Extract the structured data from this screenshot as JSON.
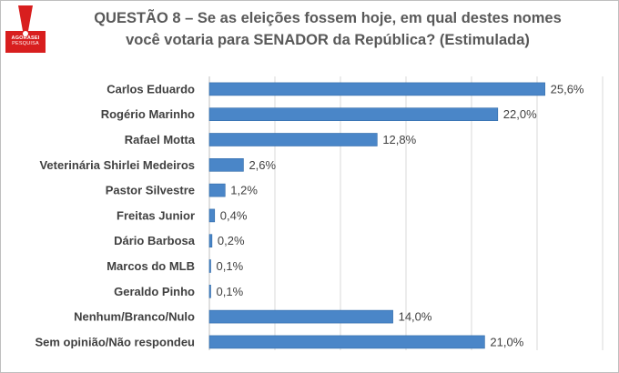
{
  "title_line1": "QUESTÃO 8 – Se as eleições fossem hoje, em qual destes nomes",
  "title_line2": "você votaria para SENADOR da República? (Estimulada)",
  "logo": {
    "name": "AGORASEI",
    "sub": "PESQUISA",
    "colors": {
      "bg": "#d81e1e",
      "mark": "#ffffff"
    }
  },
  "colors": {
    "bar": "#4a86c8",
    "bar_edge": "#2f6aa8",
    "grid": "#d9d9d9",
    "axis": "#bfbfbf",
    "text": "#404040"
  },
  "chart_data": {
    "type": "bar",
    "orientation": "horizontal",
    "title": "QUESTÃO 8 – Se as eleições fossem hoje, em qual destes nomes você votaria para SENADOR da República? (Estimulada)",
    "categories": [
      "Carlos Eduardo",
      "Rogério Marinho",
      "Rafael Motta",
      "Veterinária Shirlei Medeiros",
      "Pastor Silvestre",
      "Freitas Junior",
      "Dário Barbosa",
      "Marcos do MLB",
      "Geraldo Pinho",
      "Nenhum/Branco/Nulo",
      "Sem opinião/Não respondeu"
    ],
    "values": [
      25.6,
      22.0,
      12.8,
      2.6,
      1.2,
      0.4,
      0.2,
      0.1,
      0.1,
      14.0,
      21.0
    ],
    "labels": [
      "25,6%",
      "22,0%",
      "12,8%",
      "2,6%",
      "1,2%",
      "0,4%",
      "0,2%",
      "0,1%",
      "0,1%",
      "14,0%",
      "21,0%"
    ],
    "xlim": [
      0,
      30
    ],
    "grid": "vertical"
  }
}
